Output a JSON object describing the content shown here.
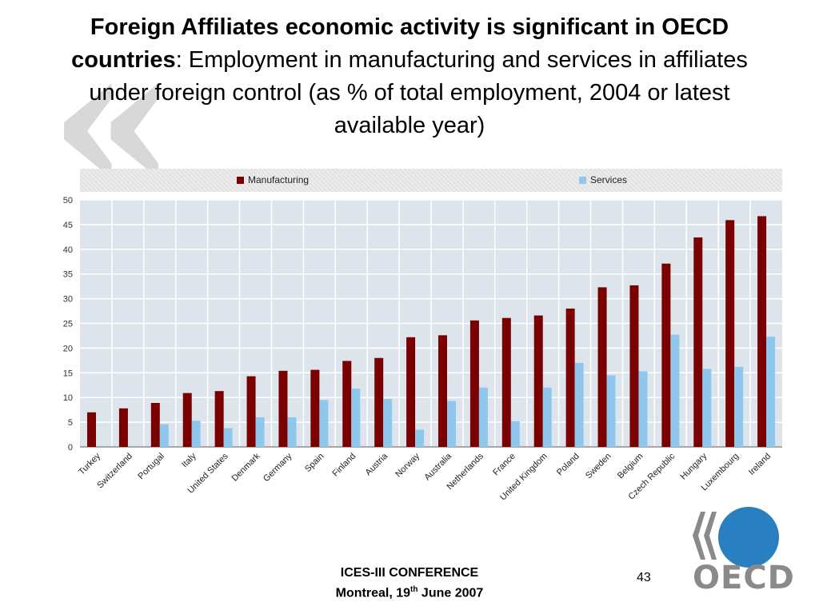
{
  "slide": {
    "title_bold": "Foreign Affiliates economic activity is significant in OECD countries",
    "title_rest": ": Employment in manufacturing and services in affiliates under foreign control (as % of total employment, 2004 or latest available year)",
    "quote_glyph": "«",
    "footer_line1": "ICES-III CONFERENCE",
    "footer_line2_pre": "Montreal, 19",
    "footer_line2_sup": "th",
    "footer_line2_post": " June 2007",
    "page_number": "43",
    "logo_text": "OECD"
  },
  "colors": {
    "manufacturing": "#7a0000",
    "services": "#8fc8ec",
    "plot_bg": "#dde4ec",
    "logo_blue": "#2a7fc1",
    "logo_gray": "#8a8a8a"
  },
  "chart_data": {
    "type": "bar",
    "title": "",
    "xlabel": "",
    "ylabel": "",
    "ylim": [
      0,
      50
    ],
    "yticks": [
      0,
      5,
      10,
      15,
      20,
      25,
      30,
      35,
      40,
      45,
      50
    ],
    "grid": true,
    "legend_position": "top",
    "categories": [
      "Turkey",
      "Switzerland",
      "Portugal",
      "Italy",
      "United States",
      "Denmark",
      "Germany",
      "Spain",
      "Finland",
      "Austria",
      "Norway",
      "Australia",
      "Netherlands",
      "France",
      "United Kingdom",
      "Poland",
      "Sweden",
      "Belgium",
      "Czech Republic",
      "Hungary",
      "Luxembourg",
      "Ireland"
    ],
    "series": [
      {
        "name": "Manufacturing",
        "values": [
          7.0,
          7.8,
          8.9,
          10.9,
          11.3,
          14.3,
          15.4,
          15.6,
          17.4,
          18.0,
          22.2,
          22.6,
          25.6,
          26.1,
          26.6,
          28.0,
          32.3,
          32.7,
          37.1,
          42.4,
          45.9,
          46.7
        ]
      },
      {
        "name": "Services",
        "values": [
          null,
          null,
          4.6,
          5.3,
          3.8,
          6.0,
          6.0,
          9.5,
          11.8,
          9.7,
          3.5,
          9.3,
          12.0,
          5.2,
          12.0,
          17.0,
          14.5,
          15.3,
          22.7,
          15.8,
          16.2,
          22.3
        ]
      }
    ]
  }
}
